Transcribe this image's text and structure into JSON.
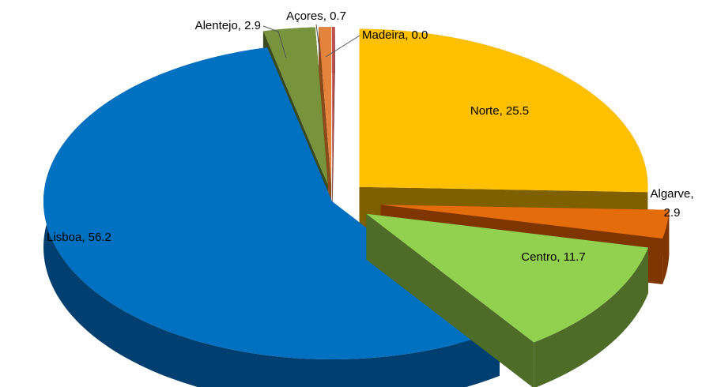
{
  "chart_data": {
    "type": "pie",
    "variant": "3d-exploded",
    "title": "",
    "slices": [
      {
        "label": "Norte",
        "value": 25.5,
        "color": "#FFC000",
        "side_color": "#7F6000",
        "label_text": "Norte, 25.5"
      },
      {
        "label": "Algarve",
        "value": 2.9,
        "color": "#E46C0A",
        "side_color": "#7F3500",
        "label_text": "Algarve,",
        "label_text2": "2.9"
      },
      {
        "label": "Centro",
        "value": 11.7,
        "color": "#92D050",
        "side_color": "#4E6B28",
        "label_text": "Centro, 11.7"
      },
      {
        "label": "Lisboa",
        "value": 56.2,
        "color": "#0070C0",
        "side_color": "#003F70",
        "label_text": "Lisboa, 56.2"
      },
      {
        "label": "Alentejo",
        "value": 2.9,
        "color": "#77933C",
        "side_color": "#3B4A1E",
        "label_text": "Alentejo, 2.9"
      },
      {
        "label": "Açores",
        "value": 0.7,
        "color": "#E4843C",
        "side_color": "#8A4A1A",
        "label_text": "Açores, 0.7"
      },
      {
        "label": "Madeira",
        "value": 0.0,
        "color": "#C0504D",
        "side_color": "#6B2A28",
        "label_text": "Madeira, 0.0"
      }
    ]
  }
}
